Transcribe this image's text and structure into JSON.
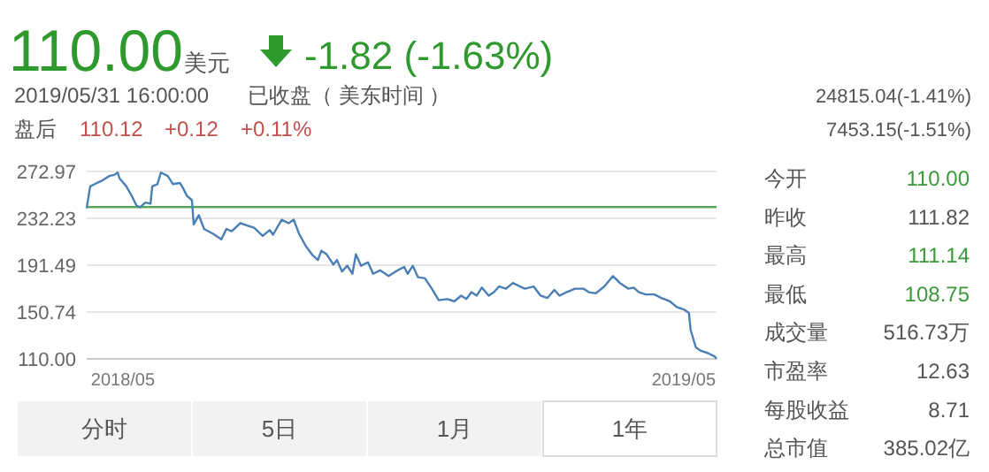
{
  "chart_data": [
    {
      "type": "other",
      "annotations": [
        "110.00",
        "美元",
        "-1.82 (-1.63%)",
        "2019/05/31 16:00:00",
        "已收盘",
        "（ 美东时间 ）",
        "盘后",
        "110.12",
        "+0.12",
        "+0.11%",
        "24815.04(-1.41%)",
        "7453.15(-1.51%)"
      ]
    },
    {
      "type": "line",
      "color": "#4a7fb5",
      "grid": "y",
      "x": [
        "2018-05-31",
        "2018-06-02",
        "2018-06-06",
        "2018-06-09",
        "2018-06-13",
        "2018-06-16",
        "2018-06-18",
        "2018-06-19",
        "2018-06-23",
        "2018-06-26",
        "2018-06-29",
        "2018-07-01",
        "2018-07-04",
        "2018-07-07",
        "2018-07-08",
        "2018-07-11",
        "2018-07-13",
        "2018-07-17",
        "2018-07-20",
        "2018-07-24",
        "2018-07-26",
        "2018-07-28",
        "2018-07-31",
        "2018-08-01",
        "2018-08-04",
        "2018-08-07",
        "2018-08-12",
        "2018-08-17",
        "2018-08-20",
        "2018-08-23",
        "2018-08-28",
        "2018-09-01",
        "2018-09-05",
        "2018-09-10",
        "2018-09-14",
        "2018-09-16",
        "2018-09-21",
        "2018-09-25",
        "2018-09-28",
        "2018-10-01",
        "2018-10-05",
        "2018-10-09",
        "2018-10-12",
        "2018-10-14",
        "2018-10-17",
        "2018-10-21",
        "2018-10-23",
        "2018-10-26",
        "2018-10-29",
        "2018-11-01",
        "2018-11-03",
        "2018-11-06",
        "2018-11-10",
        "2018-11-13",
        "2018-11-17",
        "2018-11-22",
        "2018-11-26",
        "2018-12-01",
        "2018-12-03",
        "2018-12-06",
        "2018-12-09",
        "2018-12-13",
        "2018-12-17",
        "2018-12-21",
        "2018-12-26",
        "2018-12-30",
        "2019-01-03",
        "2019-01-06",
        "2019-01-09",
        "2019-01-12",
        "2019-01-15",
        "2019-01-19",
        "2019-01-22",
        "2019-01-25",
        "2019-01-29",
        "2019-02-02",
        "2019-02-06",
        "2019-02-09",
        "2019-02-14",
        "2019-02-18",
        "2019-02-22",
        "2019-02-26",
        "2019-03-01",
        "2019-03-05",
        "2019-03-10",
        "2019-03-15",
        "2019-03-18",
        "2019-03-22",
        "2019-03-27",
        "2019-04-01",
        "2019-04-05",
        "2019-04-10",
        "2019-04-13",
        "2019-04-16",
        "2019-04-20",
        "2019-04-25",
        "2019-04-29",
        "2019-05-04",
        "2019-05-08",
        "2019-05-12",
        "2019-05-15",
        "2019-05-16",
        "2019-05-19",
        "2019-05-22",
        "2019-05-26",
        "2019-05-30",
        "2019-05-31"
      ],
      "values": [
        241,
        260,
        263,
        265,
        269,
        270,
        272,
        267,
        260,
        252,
        243,
        242,
        246,
        245,
        260,
        262,
        272,
        269,
        262,
        263,
        258,
        252,
        248,
        227,
        235,
        223,
        219,
        214,
        223,
        221,
        228,
        226,
        224,
        217,
        222,
        218,
        231,
        228,
        231,
        219,
        208,
        200,
        196,
        204,
        201,
        192,
        196,
        186,
        191,
        184,
        201,
        191,
        194,
        184,
        187,
        182,
        186,
        190,
        184,
        191,
        181,
        180,
        171,
        161,
        162,
        160,
        165,
        162,
        168,
        165,
        172,
        165,
        168,
        173,
        171,
        176,
        173,
        171,
        173,
        165,
        163,
        170,
        165,
        168,
        171,
        171,
        168,
        167,
        173,
        182,
        176,
        171,
        172,
        168,
        166,
        166,
        163,
        160,
        155,
        153,
        150,
        135,
        120,
        117,
        115,
        112,
        110
      ],
      "xlim": [
        "2018-05-31",
        "2019-05-31"
      ],
      "xticks": [
        {
          "value": "2018-06-21",
          "label": "2018/05"
        },
        {
          "value": "2019-05-12",
          "label": "2019/05"
        }
      ],
      "ylim": [
        110.0,
        272.97
      ],
      "yticks": [
        {
          "value": 110.0,
          "label": "110.00"
        },
        150.74,
        191.49,
        232.23,
        272.97
      ],
      "ref_lines": [
        {
          "axis": "y",
          "value": 242,
          "label": null,
          "color": "#5aa75a"
        }
      ]
    },
    {
      "type": "other",
      "annotations": [
        "今开",
        "110.00",
        "昨收",
        "111.82",
        "最高",
        "111.14",
        "最低",
        "108.75",
        "成交量",
        "516.73万",
        "市盈率",
        "12.63",
        "每股收益",
        "8.71",
        "总市值",
        "385.02亿",
        "分时",
        "5日",
        "1月",
        "1年"
      ]
    }
  ]
}
